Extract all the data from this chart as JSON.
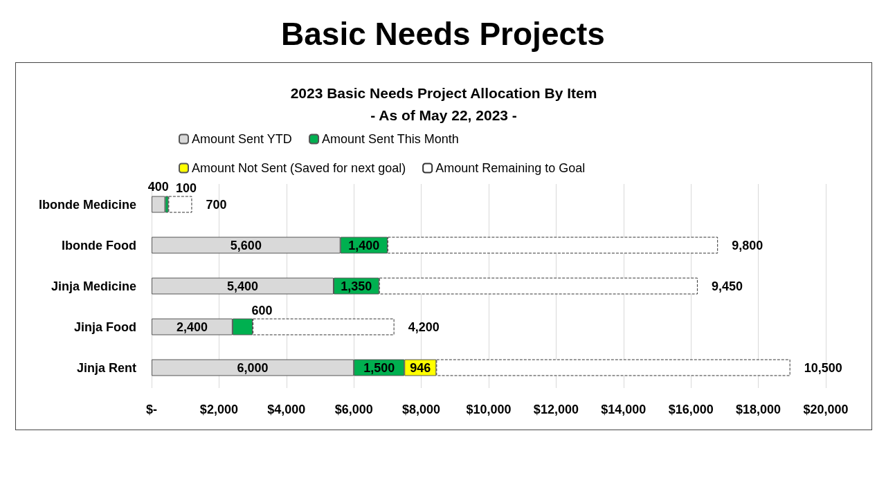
{
  "chart_data": {
    "type": "bar",
    "orientation": "horizontal",
    "stacked": true,
    "title": "Basic Needs Projects",
    "subtitle": "2023 Basic Needs Project Allocation By Item\n- As of May 22, 2023 -",
    "categories": [
      "Ibonde Medicine",
      "Ibonde Food",
      "Jinja Medicine",
      "Jinja Food",
      "Jinja Rent"
    ],
    "series": [
      {
        "name": "Amount Sent YTD",
        "color": "#d9d9d9",
        "values": [
          400,
          5600,
          5400,
          2400,
          6000
        ],
        "value_labels": [
          "400",
          "5,600",
          "5,400",
          "2,400",
          "6,000"
        ]
      },
      {
        "name": "Amount Sent This Month",
        "color": "#00b050",
        "values": [
          100,
          1400,
          1350,
          600,
          1500
        ],
        "value_labels": [
          "100",
          "1,400",
          "1,350",
          "600",
          "1,500"
        ]
      },
      {
        "name": "Amount Not Sent (Saved for next goal)",
        "color": "#ffff00",
        "values": [
          null,
          null,
          null,
          null,
          946
        ],
        "value_labels": [
          null,
          null,
          null,
          null,
          "946"
        ]
      },
      {
        "name": "Amount Remaining to Goal",
        "color": "#ffffff",
        "line_style": "dashed",
        "values": [
          700,
          9800,
          9450,
          4200,
          10500
        ],
        "value_labels": [
          "700",
          "9,800",
          "9,450",
          "4,200",
          "10,500"
        ]
      }
    ],
    "xlim": [
      0,
      20000
    ],
    "xticks": [
      {
        "value": 0,
        "label": "$-"
      },
      {
        "value": 2000,
        "label": "$2,000"
      },
      {
        "value": 4000,
        "label": "$4,000"
      },
      {
        "value": 6000,
        "label": "$6,000"
      },
      {
        "value": 8000,
        "label": "$8,000"
      },
      {
        "value": 10000,
        "label": "$10,000"
      },
      {
        "value": 12000,
        "label": "$12,000"
      },
      {
        "value": 14000,
        "label": "$14,000"
      },
      {
        "value": 16000,
        "label": "$16,000"
      },
      {
        "value": 18000,
        "label": "$18,000"
      },
      {
        "value": 20000,
        "label": "$20,000"
      }
    ],
    "grid": "x",
    "legend": "top"
  }
}
